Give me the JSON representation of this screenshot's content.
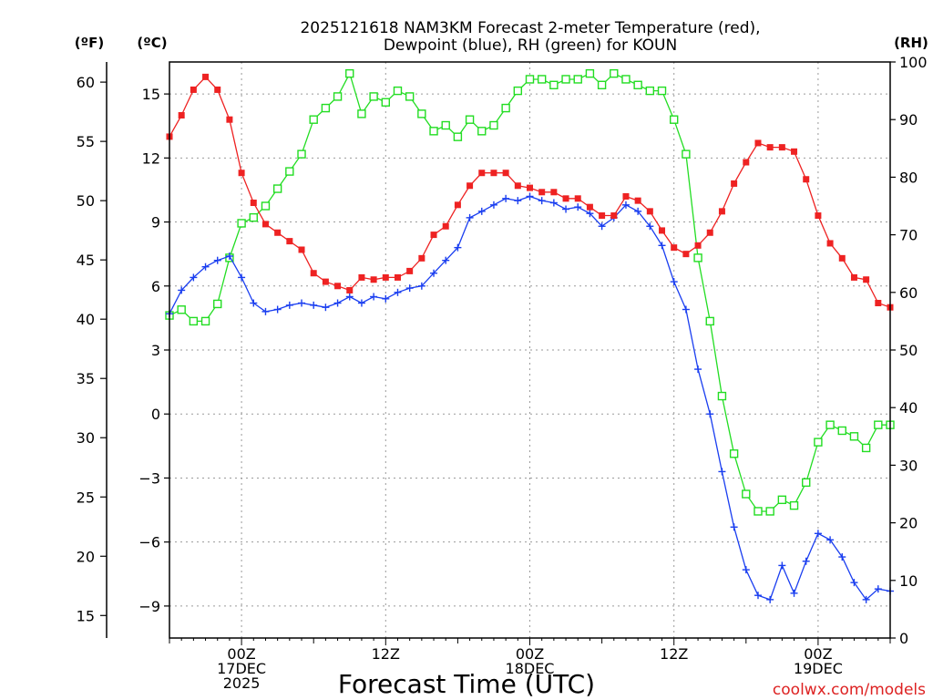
{
  "chart_data": {
    "type": "line",
    "title_line1": "2025121618 NAM3KM Forecast 2-meter Temperature (red),",
    "title_line2": "Dewpoint (blue), RH (green) for KOUN",
    "xlabel": "Forecast Time (UTC)",
    "watermark": "coolwx.com/models",
    "axes": {
      "fahrenheit": {
        "label": "(ºF)",
        "ticks": [
          15,
          20,
          25,
          30,
          35,
          40,
          45,
          50,
          55,
          60
        ]
      },
      "celsius": {
        "label": "(ºC)",
        "ylim": [
          -10.5,
          16.5
        ],
        "ticks": [
          -9,
          -6,
          -3,
          0,
          3,
          6,
          9,
          12,
          15
        ],
        "tick_labels": [
          "−9",
          "−6",
          "−3",
          "0",
          "3",
          "6",
          "9",
          "12",
          "15"
        ]
      },
      "rh": {
        "label": "(RH)",
        "ylim": [
          0,
          100
        ],
        "ticks": [
          0,
          10,
          20,
          30,
          40,
          50,
          60,
          70,
          80,
          90,
          100
        ]
      },
      "time": {
        "unit": "hours after 2025-12-16 18Z",
        "xlim": [
          0,
          60
        ],
        "grid_hours": [
          6,
          18,
          30,
          42,
          54
        ],
        "tick_labels": [
          {
            "hour": 6,
            "lines": [
              "00Z",
              "17DEC",
              "2025"
            ]
          },
          {
            "hour": 18,
            "lines": [
              "12Z"
            ]
          },
          {
            "hour": 30,
            "lines": [
              "00Z",
              "18DEC"
            ]
          },
          {
            "hour": 42,
            "lines": [
              "12Z"
            ]
          },
          {
            "hour": 54,
            "lines": [
              "00Z",
              "19DEC"
            ]
          }
        ]
      }
    },
    "colors": {
      "temperature": "#ee2222",
      "dewpoint": "#1a3ef0",
      "rh": "#22dd22",
      "grid": "#9a9a9a",
      "watermark": "#dd2222"
    },
    "series": [
      {
        "name": "2-meter Temperature",
        "unit": "C",
        "values": [
          13.0,
          14.0,
          15.2,
          15.8,
          15.2,
          13.8,
          11.3,
          9.9,
          8.9,
          8.5,
          8.1,
          7.7,
          6.6,
          6.2,
          6.0,
          5.8,
          6.4,
          6.3,
          6.4,
          6.4,
          6.7,
          7.3,
          8.4,
          8.8,
          9.8,
          10.7,
          11.3,
          11.3,
          11.3,
          10.7,
          10.6,
          10.4,
          10.4,
          10.1,
          10.1,
          9.7,
          9.3,
          9.3,
          10.2,
          10.0,
          9.5,
          8.6,
          7.8,
          7.5,
          7.9,
          8.5,
          9.5,
          10.8,
          11.8,
          12.7,
          12.5,
          12.5,
          12.3,
          11.0,
          9.3,
          8.0,
          7.3,
          6.4,
          6.3,
          5.2,
          5.0
        ]
      },
      {
        "name": "Dewpoint",
        "unit": "C",
        "values": [
          4.7,
          5.8,
          6.4,
          6.9,
          7.2,
          7.4,
          6.4,
          5.2,
          4.8,
          4.9,
          5.1,
          5.2,
          5.1,
          5.0,
          5.2,
          5.5,
          5.2,
          5.5,
          5.4,
          5.7,
          5.9,
          6.0,
          6.6,
          7.2,
          7.8,
          9.2,
          9.5,
          9.8,
          10.1,
          10.0,
          10.2,
          10.0,
          9.9,
          9.6,
          9.7,
          9.4,
          8.8,
          9.2,
          9.8,
          9.5,
          8.8,
          7.9,
          6.2,
          4.9,
          2.1,
          0.0,
          -2.7,
          -5.3,
          -7.3,
          -8.5,
          -8.7,
          -7.1,
          -8.4,
          -6.9,
          -5.6,
          -5.9,
          -6.7,
          -7.9,
          -8.7,
          -8.2,
          -8.3
        ]
      },
      {
        "name": "RH",
        "unit": "%",
        "values": [
          56,
          57,
          55,
          55,
          58,
          66,
          72,
          73,
          75,
          78,
          81,
          84,
          90,
          92,
          94,
          98,
          91,
          94,
          93,
          95,
          94,
          91,
          88,
          89,
          87,
          90,
          88,
          89,
          92,
          95,
          97,
          97,
          96,
          97,
          97,
          98,
          96,
          98,
          97,
          96,
          95,
          95,
          90,
          84,
          66,
          55,
          42,
          32,
          25,
          22,
          22,
          24,
          23,
          27,
          34,
          37,
          36,
          35,
          33,
          37,
          37
        ]
      }
    ]
  }
}
